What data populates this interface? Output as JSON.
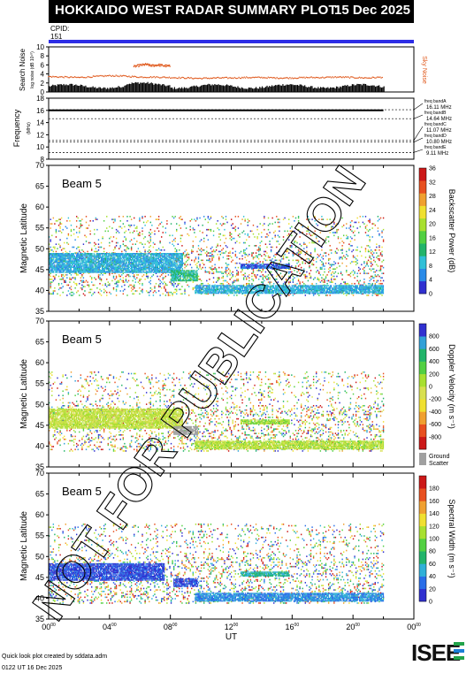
{
  "header": {
    "title": "HOKKAIDO WEST RADAR SUMMARY PLOT",
    "date": "15 Dec 2025"
  },
  "cpid": {
    "label": "CPID:",
    "value": "151"
  },
  "watermark": "NOT FOR PUBLICATION",
  "footer": {
    "credit": "Quick look plot created by sddata.adm",
    "timestamp": "0122 UT 16 Dec 2025",
    "logo": "ISEE"
  },
  "colors": {
    "header": "#000000",
    "cpid_bar": "#2d2de6",
    "noise_points": "#e05a1e",
    "ground_scatter": "#a0a0a0",
    "watermark": "#000000"
  },
  "chart_data": [
    {
      "type": "scatter",
      "ylabel": "Search Noise",
      "ylabel_small": "log noise (dB 10¹⁰)",
      "right_label": "Sky Noise",
      "ylim": [
        0,
        10
      ],
      "yticks": [
        "0",
        "2",
        "4",
        "6",
        "8",
        "10"
      ],
      "xlim": [
        0,
        24
      ],
      "series": [
        {
          "x": [
            0,
            1,
            2,
            3,
            4,
            5,
            6,
            7,
            8,
            9,
            10,
            11,
            12,
            13,
            14,
            15,
            16,
            17,
            18,
            19,
            20,
            21,
            22
          ],
          "y": [
            3.4,
            3.3,
            3.2,
            3.4,
            3.6,
            3.5,
            3.3,
            3.3,
            3.2,
            3.1,
            3.0,
            3.1,
            3.1,
            3.2,
            3.2,
            3.1,
            3.1,
            3.2,
            3.2,
            3.3,
            3.2,
            3.1,
            3.3
          ]
        },
        {
          "x": [
            5.6,
            6.0,
            6.4,
            6.8,
            7.2,
            7.6,
            8.0
          ],
          "y": [
            5.6,
            5.9,
            6.1,
            5.8,
            6.0,
            5.8,
            5.7
          ]
        }
      ]
    },
    {
      "type": "line",
      "ylabel": "Frequency",
      "ylabel_small": "(MHz)",
      "ylim": [
        8,
        18
      ],
      "yticks": [
        "8",
        "10",
        "12",
        "14",
        "16",
        "18"
      ],
      "xlim": [
        0,
        24
      ],
      "bands": [
        {
          "label": "freq bandA",
          "value": 16.11,
          "text": "16.11 MHz"
        },
        {
          "label": "freq bandB",
          "value": 14.64,
          "text": "14.64 MHz"
        },
        {
          "label": "freq bandC",
          "value": 11.07,
          "text": "11.07 MHz"
        },
        {
          "label": "freq bandD",
          "value": 10.8,
          "text": "10.80 MHz"
        },
        {
          "label": "freq bandE",
          "value": 9.11,
          "text": "9.11 MHz"
        }
      ],
      "operating_frequency": {
        "x": [
          0,
          22
        ],
        "y": 16.0
      }
    },
    {
      "type": "heatmap",
      "panel_label": "Beam  5",
      "ylabel": "Magnetic Latitude",
      "ylim": [
        35,
        70
      ],
      "yticks": [
        "35",
        "40",
        "45",
        "50",
        "55",
        "60",
        "65",
        "70"
      ],
      "xlim": [
        0,
        24
      ],
      "colorbar_label": "Backscatter Power (dB)",
      "colorbar_ticks": [
        "0",
        "4",
        "8",
        "12",
        "16",
        "20",
        "24",
        "28",
        "32",
        "36"
      ],
      "colorbar_range": [
        0,
        36
      ],
      "features": [
        {
          "name": "main echo band",
          "x_range": [
            0,
            8.8
          ],
          "lat_range": [
            44.5,
            49
          ],
          "value": 8
        },
        {
          "name": "mid-latitude echo",
          "x_range": [
            8,
            9.8
          ],
          "lat_range": [
            42.5,
            45
          ],
          "value": 12
        },
        {
          "name": "band near 46",
          "x_range": [
            12.6,
            15.8
          ],
          "lat_range": [
            45.5,
            46.5
          ],
          "value": 4
        },
        {
          "name": "ground band",
          "x_range": [
            9.6,
            22
          ],
          "lat_range": [
            39.5,
            41.5
          ],
          "value": 8
        }
      ]
    },
    {
      "type": "heatmap",
      "panel_label": "Beam  5",
      "ylabel": "Magnetic Latitude",
      "ylim": [
        35,
        70
      ],
      "yticks": [
        "35",
        "40",
        "45",
        "50",
        "55",
        "60",
        "65",
        "70"
      ],
      "xlim": [
        0,
        24
      ],
      "colorbar_label": "Doppler Velocity (m s⁻¹)",
      "colorbar_ticks": [
        "-800",
        "-600",
        "-400",
        "-200",
        "0",
        "200",
        "400",
        "600",
        "800"
      ],
      "colorbar_range": [
        -1000,
        1000
      ],
      "ground_scatter_label": [
        "Ground",
        "Scatter"
      ],
      "features": [
        {
          "name": "main echo band",
          "x_range": [
            0,
            8.8
          ],
          "lat_range": [
            44.5,
            49
          ],
          "value": 0
        },
        {
          "name": "ground scatter",
          "x_range": [
            8.2,
            9.8
          ],
          "lat_range": [
            43,
            45
          ],
          "value": 0
        },
        {
          "name": "band near 46",
          "x_range": [
            12.6,
            15.8
          ],
          "lat_range": [
            45.5,
            46.5
          ],
          "value": 100
        },
        {
          "name": "ground band",
          "x_range": [
            9.6,
            22
          ],
          "lat_range": [
            39.5,
            41.5
          ],
          "value": 50
        }
      ]
    },
    {
      "type": "heatmap",
      "panel_label": "Beam  5",
      "ylabel": "Magnetic Latitude",
      "ylim": [
        35,
        70
      ],
      "yticks": [
        "35",
        "40",
        "45",
        "50",
        "55",
        "60",
        "65",
        "70"
      ],
      "xlim": [
        0,
        24
      ],
      "xlabel": "UT",
      "xticks": [
        "00",
        "04",
        "08",
        "12",
        "16",
        "20",
        "00"
      ],
      "colorbar_label": "Spectral Width (m s⁻¹)",
      "colorbar_ticks": [
        "0",
        "20",
        "40",
        "60",
        "80",
        "100",
        "120",
        "140",
        "160",
        "180"
      ],
      "colorbar_range": [
        0,
        200
      ],
      "features": [
        {
          "name": "main echo band",
          "x_range": [
            0,
            7.6
          ],
          "lat_range": [
            44.5,
            48.5
          ],
          "value": 20
        },
        {
          "name": "mid-latitude echo",
          "x_range": [
            8.2,
            9.8
          ],
          "lat_range": [
            43,
            45
          ],
          "value": 20
        },
        {
          "name": "band near 46",
          "x_range": [
            12.6,
            15.8
          ],
          "lat_range": [
            45.5,
            46.5
          ],
          "value": 60
        },
        {
          "name": "ground band",
          "x_range": [
            9.6,
            22
          ],
          "lat_range": [
            39.5,
            41.5
          ],
          "value": 40
        }
      ]
    }
  ]
}
